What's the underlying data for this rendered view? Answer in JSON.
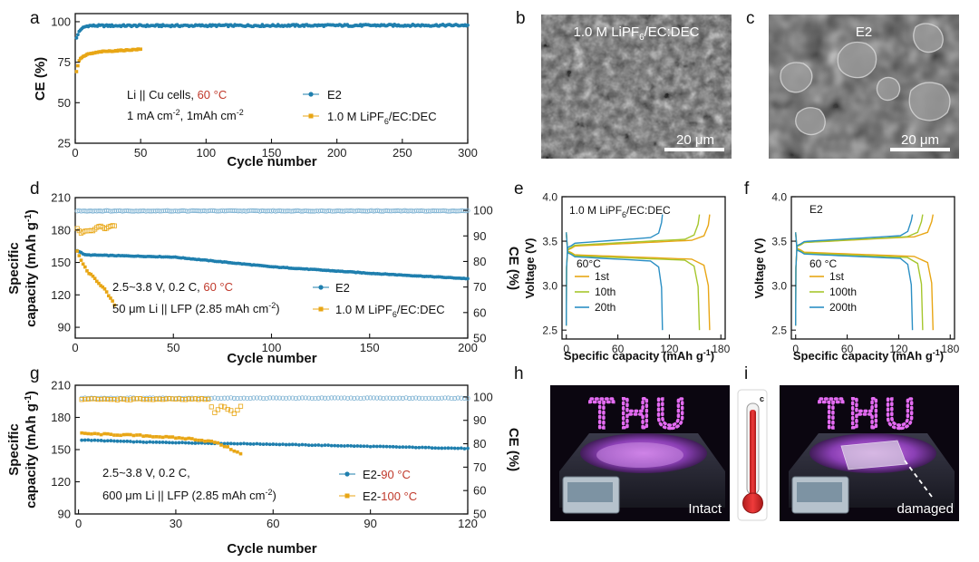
{
  "colors": {
    "e2": "#1f7fae",
    "ref": "#e8a615",
    "ce_open": "#7fb3d3",
    "red_text": "#c0392b",
    "green_mid": "#a6c62d",
    "curve_blue": "#2b8fc4"
  },
  "panels": {
    "a": "a",
    "b": "b",
    "c": "c",
    "d": "d",
    "e": "e",
    "f": "f",
    "g": "g",
    "h": "h",
    "i": "i"
  },
  "chart_data": [
    {
      "id": "a",
      "type": "scatter",
      "xlabel": "Cycle number",
      "ylabel": "CE (%)",
      "xlim": [
        0,
        300
      ],
      "ylim": [
        25,
        105
      ],
      "xticks": [
        "0",
        "50",
        "100",
        "150",
        "200",
        "250",
        "300"
      ],
      "yticks": [
        "25",
        "50",
        "75",
        "100"
      ],
      "annotations": {
        "line1_a": "Li || Cu cells, ",
        "line1_b": "60 °C",
        "line2_a": "1 mA cm",
        "line2_sup1": "-2",
        "line2_b": ", 1mAh cm",
        "line2_sup2": "-2"
      },
      "series": [
        {
          "name": "E2",
          "anchors": [
            [
              1,
              90
            ],
            [
              3,
              94
            ],
            [
              6,
              96.5
            ],
            [
              10,
              97.5
            ],
            [
              30,
              97.5
            ],
            [
              300,
              97.8
            ]
          ],
          "n": 300,
          "noise": 0.6
        },
        {
          "name_a": "1.0 M LiPF",
          "name_sub": "6",
          "name_b": "/EC:DEC",
          "anchors": [
            [
              1,
              69
            ],
            [
              2,
              73
            ],
            [
              3,
              76
            ],
            [
              5,
              78
            ],
            [
              10,
              80
            ],
            [
              20,
              81.5
            ],
            [
              50,
              83
            ]
          ],
          "n": 50,
          "noise": 0.3
        }
      ]
    },
    {
      "id": "d",
      "type": "scatter",
      "xlabel": "Cycle number",
      "ylabel_1": "Specific",
      "ylabel_2a": "capacity (mAh g",
      "ylabel_2sup": "-1",
      "ylabel_2b": ")",
      "ylabel_right": "CE (%)",
      "xlim": [
        0,
        200
      ],
      "ylim": [
        80,
        210
      ],
      "ylim_right": [
        50,
        105
      ],
      "xticks": [
        "0",
        "50",
        "100",
        "150",
        "200"
      ],
      "yticks": [
        "90",
        "120",
        "150",
        "180",
        "210"
      ],
      "yticks_right": [
        "50",
        "60",
        "70",
        "80",
        "90",
        "100"
      ],
      "annotations": {
        "line1_a": "2.5~3.8 V, 0.2 C, ",
        "line1_b": "60 °C",
        "line2_a": "50 μm Li || LFP (2.85 mAh cm",
        "line2_sup": "-2",
        "line2_b": ")"
      },
      "series": [
        {
          "name": "E2",
          "capacity_anchors": [
            [
              1,
              161
            ],
            [
              5,
              157
            ],
            [
              50,
              155
            ],
            [
              100,
              146
            ],
            [
              150,
              140
            ],
            [
              200,
              135
            ]
          ],
          "ce_value": 99.8,
          "n": 200
        },
        {
          "name_a": "1.0 M LiPF",
          "name_sub": "6",
          "name_b": "/EC:DEC",
          "capacity_anchors": [
            [
              1,
              160
            ],
            [
              3,
              152
            ],
            [
              6,
              142
            ],
            [
              10,
              135
            ],
            [
              15,
              125
            ],
            [
              20,
              111
            ]
          ],
          "ce_anchors": [
            [
              1,
              93
            ],
            [
              3,
              91
            ],
            [
              6,
              92
            ],
            [
              9,
              92
            ],
            [
              12,
              94
            ],
            [
              15,
              93
            ],
            [
              20,
              94
            ]
          ],
          "n": 20
        }
      ]
    },
    {
      "id": "e",
      "type": "line",
      "title_a": "1.0 M LiPF",
      "title_sub": "6",
      "title_b": "/EC:DEC",
      "temp": "60°C",
      "xlabel_a": "Specific capacity  (mAh g",
      "xlabel_sup": "-1",
      "xlabel_b": ")",
      "ylabel": "Voltage (V)",
      "xlim": [
        -5,
        185
      ],
      "ylim": [
        2.4,
        4.0
      ],
      "xticks": [
        "0",
        "60",
        "120",
        "180"
      ],
      "yticks": [
        "2.5",
        "3.0",
        "3.5",
        "4.0"
      ],
      "series": [
        {
          "name": "1st",
          "capacity": 167,
          "plateau": 3.42,
          "discharge": 3.35
        },
        {
          "name": "10th",
          "capacity": 155,
          "plateau": 3.43,
          "discharge": 3.34
        },
        {
          "name": "20th",
          "capacity": 112,
          "plateau": 3.45,
          "discharge": 3.33
        }
      ]
    },
    {
      "id": "f",
      "type": "line",
      "title": "E2",
      "temp": "60 °C",
      "xlabel_a": "Specific capacity  (mAh g",
      "xlabel_sup": "-1",
      "xlabel_b": ")",
      "ylabel": "Voltage (V)",
      "xlim": [
        -5,
        185
      ],
      "ylim": [
        2.4,
        4.0
      ],
      "xticks": [
        "0",
        "60",
        "120",
        "180"
      ],
      "yticks": [
        "2.5",
        "3.0",
        "3.5",
        "4.0"
      ],
      "series": [
        {
          "name": "1st",
          "capacity": 160,
          "plateau": 3.46,
          "discharge": 3.38
        },
        {
          "name": "100th",
          "capacity": 148,
          "plateau": 3.46,
          "discharge": 3.37
        },
        {
          "name": "200th",
          "capacity": 136,
          "plateau": 3.47,
          "discharge": 3.36
        }
      ]
    },
    {
      "id": "g",
      "type": "scatter",
      "xlabel": "Cycle number",
      "ylabel_1": "Specific",
      "ylabel_2a": "capacity (mAh g",
      "ylabel_2sup": "-1",
      "ylabel_2b": ")",
      "ylabel_right": "CE (%)",
      "xlim": [
        -1,
        120
      ],
      "ylim": [
        90,
        210
      ],
      "ylim_right": [
        50,
        105
      ],
      "xticks": [
        "0",
        "30",
        "60",
        "90",
        "120"
      ],
      "yticks": [
        "90",
        "120",
        "150",
        "180",
        "210"
      ],
      "yticks_right": [
        "50",
        "60",
        "70",
        "80",
        "90",
        "100"
      ],
      "annotations": {
        "line1": "2.5~3.8 V, 0.2 C,",
        "line2_a": "600 μm Li || LFP (2.85 mAh cm",
        "line2_sup": "-2",
        "line2_b": ")"
      },
      "series": [
        {
          "name_a": "E2-",
          "name_b": "90 °C",
          "capacity_anchors": [
            [
              1,
              159
            ],
            [
              20,
              157
            ],
            [
              60,
              155
            ],
            [
              120,
              151
            ]
          ],
          "ce_value": 99.5,
          "n": 120
        },
        {
          "name_a": "E2-",
          "name_b": "100 °C",
          "capacity_anchors": [
            [
              1,
              165
            ],
            [
              20,
              163
            ],
            [
              35,
              160
            ],
            [
              42,
              157
            ],
            [
              46,
              152
            ],
            [
              50,
              146
            ]
          ],
          "ce_anchors": [
            [
              1,
              99
            ],
            [
              40,
              99
            ],
            [
              42,
              93
            ],
            [
              44,
              96
            ],
            [
              46,
              95
            ],
            [
              48,
              93
            ],
            [
              50,
              96
            ]
          ],
          "n": 50
        }
      ]
    }
  ],
  "images": {
    "b_label_a": "1.0 M LiPF",
    "b_label_sub": "6",
    "b_label_b": "/EC:DEC",
    "c_label": "E2",
    "scale_bar": "20 μm",
    "h_caption": "Intact",
    "i_caption": "damaged",
    "led_text": "THU",
    "thermometer_unit": "c"
  }
}
